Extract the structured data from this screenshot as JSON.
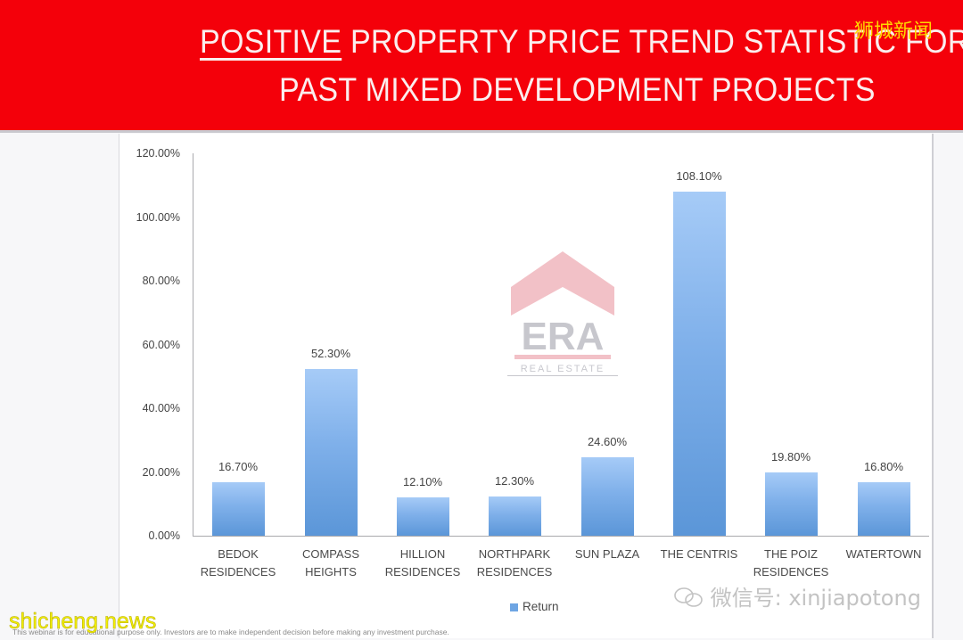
{
  "header": {
    "title_underlined": "POSITIVE",
    "title_line1_rest": " PROPERTY PRICE TREND STATISTIC FOR",
    "title_line2": "PAST MIXED DEVELOPMENT PROJECTS",
    "watermark_cn": "狮城新闻",
    "background_color": "#f4000a"
  },
  "logo": {
    "brand": "ERA",
    "tagline": "REAL ESTATE",
    "roof_color": "#e8909a",
    "text_color": "#9a9aa6"
  },
  "legend": {
    "label": "Return"
  },
  "footer": {
    "disclaimer": "This webinar is for educational purpose only. Investors are to make independent decision before making any investment purchase.",
    "site_watermark": "shicheng.news",
    "wechat_watermark": "微信号: xinjiapotong"
  },
  "y_ticks": [
    "120.00%",
    "100.00%",
    "80.00%",
    "60.00%",
    "40.00%",
    "20.00%",
    "0.00%"
  ],
  "bars": [
    {
      "label_l1": "BEDOK",
      "label_l2": "RESIDENCES",
      "value_label": "16.70%"
    },
    {
      "label_l1": "COMPASS",
      "label_l2": "HEIGHTS",
      "value_label": "52.30%"
    },
    {
      "label_l1": "HILLION",
      "label_l2": "RESIDENCES",
      "value_label": "12.10%"
    },
    {
      "label_l1": "NORTHPARK",
      "label_l2": "RESIDENCES",
      "value_label": "12.30%"
    },
    {
      "label_l1": "SUN PLAZA",
      "label_l2": "",
      "value_label": "24.60%"
    },
    {
      "label_l1": "THE CENTRIS",
      "label_l2": "",
      "value_label": "108.10%"
    },
    {
      "label_l1": "THE POIZ",
      "label_l2": "RESIDENCES",
      "value_label": "19.80%"
    },
    {
      "label_l1": "WATERTOWN",
      "label_l2": "",
      "value_label": "16.80%"
    }
  ],
  "chart_data": {
    "type": "bar",
    "title": "POSITIVE PROPERTY PRICE TREND STATISTIC FOR PAST MIXED DEVELOPMENT PROJECTS",
    "categories": [
      "BEDOK RESIDENCES",
      "COMPASS HEIGHTS",
      "HILLION RESIDENCES",
      "NORTHPARK RESIDENCES",
      "SUN PLAZA",
      "THE CENTRIS",
      "THE POIZ RESIDENCES",
      "WATERTOWN"
    ],
    "series": [
      {
        "name": "Return",
        "values": [
          16.7,
          52.3,
          12.1,
          12.3,
          24.6,
          108.1,
          19.8,
          16.8
        ],
        "color": "#6ea5e3"
      }
    ],
    "xlabel": "",
    "ylabel": "",
    "ylim": [
      0,
      120
    ],
    "y_tick_format": "percent_2dp",
    "data_labels": true,
    "grid": false,
    "legend_position": "bottom"
  }
}
